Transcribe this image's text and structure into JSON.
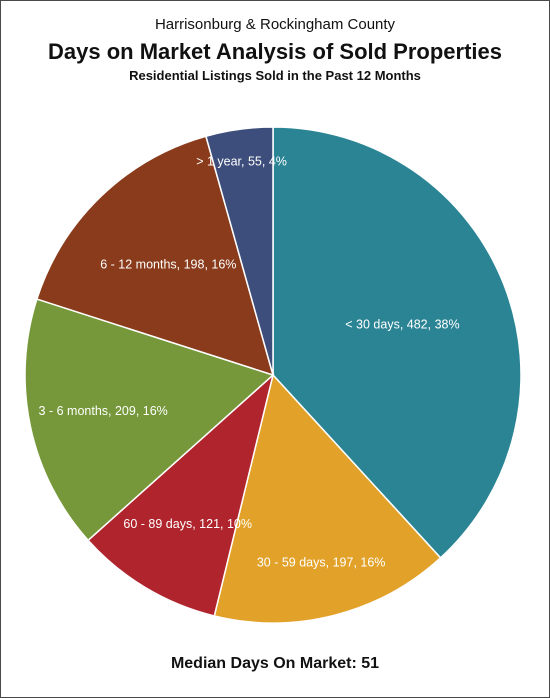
{
  "header": {
    "subtitle_top": "Harrisonburg & Rockingham County",
    "title": "Days on Market Analysis of Sold Properties",
    "subtitle_bottom": "Residential Listings Sold in the Past 12 Months"
  },
  "footer": {
    "median_text": "Median Days On Market:  51"
  },
  "chart_data": {
    "type": "pie",
    "title": "Days on Market Analysis of Sold Properties",
    "start_angle": "top (12 o'clock)",
    "direction": "clockwise",
    "slices": [
      {
        "name": "< 30 days",
        "value": 482,
        "percent": 38,
        "color": "#2a8494",
        "label": "< 30 days, 482, 38%"
      },
      {
        "name": "30 - 59 days",
        "value": 197,
        "percent": 16,
        "color": "#e2a22a",
        "label": "30 - 59 days, 197, 16%"
      },
      {
        "name": "60 - 89 days",
        "value": 121,
        "percent": 10,
        "color": "#b0252d",
        "label": "60 - 89 days, 121, 10%"
      },
      {
        "name": "3 - 6 months",
        "value": 209,
        "percent": 16,
        "color": "#76983a",
        "label": "3 - 6 months, 209, 16%"
      },
      {
        "name": "6 - 12 months",
        "value": 198,
        "percent": 16,
        "color": "#8a3b1b",
        "label": "6 - 12 months, 198, 16%"
      },
      {
        "name": "> 1 year",
        "value": 55,
        "percent": 4,
        "color": "#3e4e7c",
        "label": "> 1 year, 55, 4%"
      }
    ]
  }
}
